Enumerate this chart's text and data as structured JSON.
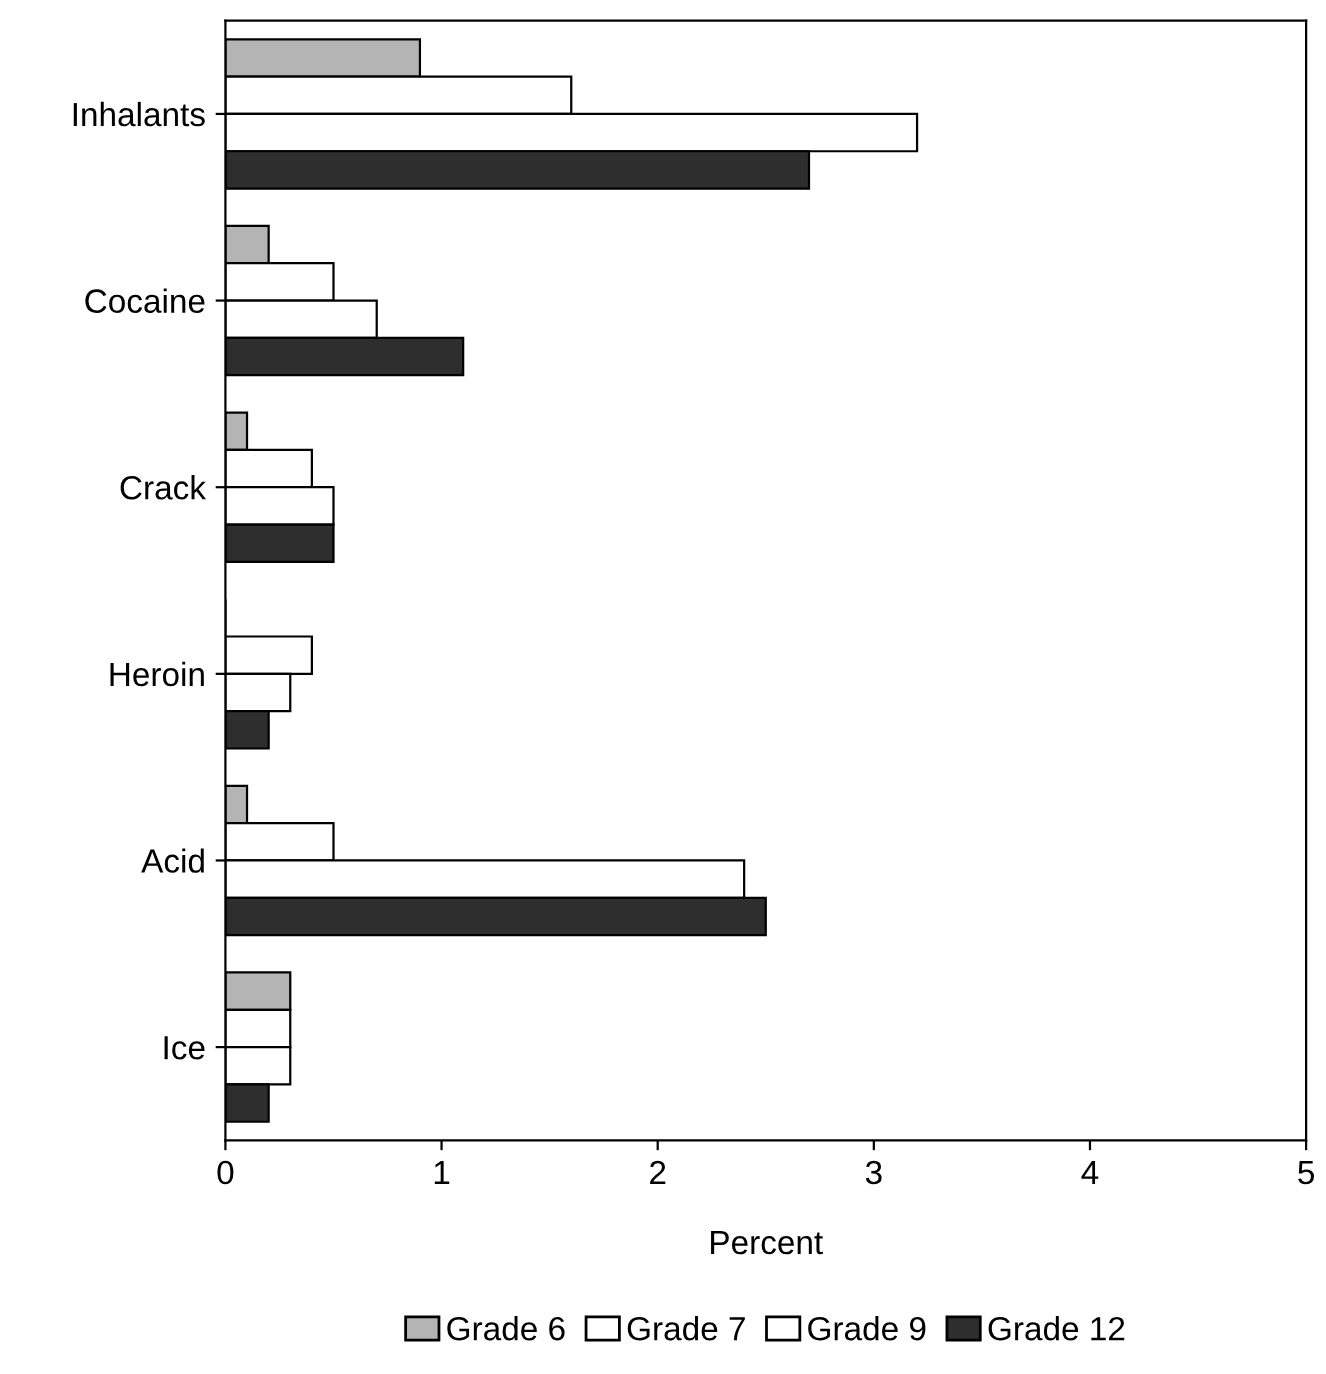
{
  "chart_data": {
    "type": "bar",
    "orientation": "horizontal",
    "xlabel": "Percent",
    "categories": [
      "Inhalants",
      "Cocaine",
      "Crack",
      "Heroin",
      "Acid",
      "Ice"
    ],
    "series": [
      {
        "name": "Grade 6",
        "color": "#b4b4b4",
        "values": [
          0.9,
          0.2,
          0.1,
          0,
          0.1,
          0.3
        ]
      },
      {
        "name": "Grade 7",
        "color": "#ffffff",
        "values": [
          1.6,
          0.5,
          0.4,
          0.4,
          0.5,
          0.3
        ]
      },
      {
        "name": "Grade 9",
        "color": "#ffffff",
        "values": [
          3.2,
          0.7,
          0.5,
          0.3,
          2.4,
          0.3
        ]
      },
      {
        "name": "Grade 12",
        "color": "#2e2e2e",
        "values": [
          2.7,
          1.1,
          0.5,
          0.2,
          2.5,
          0.2
        ]
      }
    ],
    "xlim": [
      0,
      5
    ],
    "xticks": [
      0,
      1,
      2,
      3,
      4,
      5
    ],
    "grid": false,
    "legend": "bottom"
  }
}
